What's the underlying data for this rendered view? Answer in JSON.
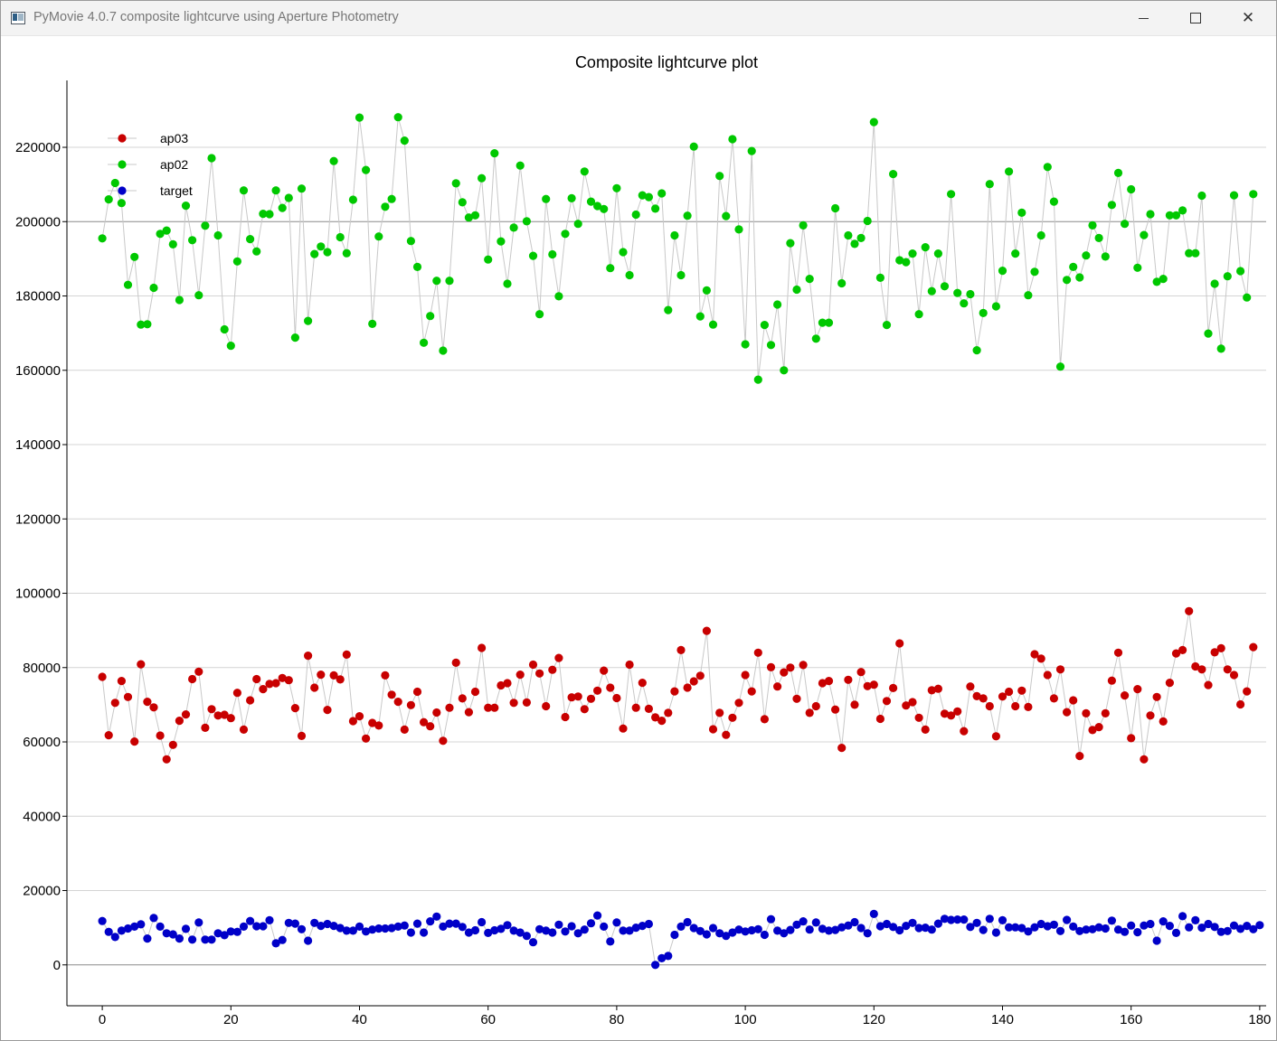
{
  "window": {
    "title": "PyMovie 4.0.7 composite lightcurve using Aperture Photometry",
    "minimize_icon": "minimize-icon",
    "maximize_icon": "maximize-icon",
    "close_icon": "close-icon",
    "close_glyph": "✕"
  },
  "chart_data": {
    "type": "line",
    "title": "Composite lightcurve plot",
    "xlabel": "",
    "ylabel": "",
    "xlim": [
      -5.5,
      181
    ],
    "ylim": [
      -11000,
      238000
    ],
    "x_ticks": [
      0,
      20,
      40,
      60,
      80,
      100,
      120,
      140,
      160,
      180
    ],
    "y_ticks": [
      0,
      20000,
      40000,
      60000,
      80000,
      100000,
      120000,
      140000,
      160000,
      180000,
      200000,
      220000
    ],
    "grid": true,
    "legend_position": "top-left",
    "line_color": "#c8c8c8",
    "series": [
      {
        "name": "target",
        "color": "#0000c8",
        "values": [
          11800,
          8900,
          7500,
          9200,
          9800,
          10300,
          10900,
          7100,
          12600,
          10300,
          8500,
          8200,
          7100,
          9700,
          6800,
          11400,
          6800,
          6800,
          8500,
          8000,
          9000,
          8900,
          10300,
          11800,
          10400,
          10400,
          12000,
          5800,
          6700,
          11300,
          11100,
          9600,
          6500,
          11300,
          10500,
          11000,
          10500,
          9900,
          9200,
          9200,
          10300,
          9000,
          9500,
          9800,
          9800,
          9900,
          10300,
          10600,
          8700,
          11100,
          8700,
          11700,
          13000,
          10300,
          11100,
          11100,
          10200,
          8700,
          9300,
          11500,
          8600,
          9300,
          9700,
          10700,
          9200,
          8700,
          7800,
          6100,
          9600,
          9200,
          8700,
          10800,
          9000,
          10400,
          8500,
          9500,
          11200,
          13300,
          10300,
          6300,
          11400,
          9200,
          9200,
          10000,
          10500,
          11000,
          0,
          1800,
          2400,
          8100,
          10300,
          11500,
          9900,
          9100,
          8200,
          9900,
          8500,
          7800,
          8700,
          9500,
          9000,
          9300,
          9600,
          8100,
          12300,
          9200,
          8500,
          9400,
          10800,
          11700,
          9500,
          11400,
          9700,
          9200,
          9400,
          10100,
          10600,
          11500,
          9900,
          8500,
          13700,
          10400,
          11000,
          10200,
          9300,
          10500,
          11300,
          9900,
          10000,
          9500,
          11100,
          12400,
          12100,
          12200,
          12200,
          10200,
          11300,
          9400,
          12400,
          8700,
          12000,
          10100,
          10100,
          9900,
          9000,
          10100,
          11000,
          10400,
          10800,
          9100,
          12100,
          10300,
          9100,
          9500,
          9600,
          10100,
          9800,
          11900,
          9500,
          8900,
          10600,
          8800,
          10600,
          11000,
          6500,
          11700,
          10500,
          8600,
          13100,
          10100,
          12000,
          10000,
          11000,
          10200,
          8900,
          9100,
          10600,
          9700,
          10500,
          9600,
          10700
        ]
      },
      {
        "name": "ap03",
        "color": "#c80000",
        "values": [
          77500,
          61800,
          70500,
          76400,
          72100,
          60100,
          80900,
          70800,
          69300,
          61700,
          55300,
          59200,
          65700,
          67400,
          76900,
          78900,
          63800,
          68800,
          67100,
          67300,
          66400,
          73200,
          63300,
          71200,
          76900,
          74200,
          75600,
          75800,
          77200,
          76600,
          69100,
          61600,
          83200,
          74600,
          78100,
          68600,
          77900,
          76800,
          83500,
          65600,
          66900,
          60900,
          65100,
          64400,
          77900,
          72700,
          70800,
          63300,
          69900,
          73500,
          65300,
          64200,
          67900,
          60300,
          69200,
          81300,
          71700,
          68000,
          73500,
          85300,
          69200,
          69200,
          75200,
          75800,
          70500,
          78100,
          70600,
          80800,
          78400,
          69600,
          79400,
          82600,
          66700,
          72000,
          72200,
          68800,
          71600,
          73800,
          79200,
          74600,
          71800,
          63600,
          80800,
          69200,
          75900,
          68900,
          66600,
          65700,
          67800,
          73600,
          84700,
          74600,
          76300,
          77800,
          89900,
          63400,
          67800,
          61900,
          66500,
          70500,
          78000,
          73600,
          84000,
          66100,
          80100,
          74900,
          78700,
          80000,
          71600,
          80700,
          67800,
          69600,
          75800,
          76400,
          68700,
          58400,
          76700,
          70000,
          78800,
          75000,
          75400,
          66200,
          71000,
          74500,
          86500,
          69800,
          70700,
          66500,
          63300,
          73900,
          74300,
          67600,
          67100,
          68200,
          62900,
          74900,
          72300,
          71700,
          69600,
          61500,
          72200,
          73500,
          69600,
          73800,
          69400,
          83600,
          82400,
          78000,
          71700,
          79500,
          68000,
          71200,
          56200,
          67700,
          63200,
          64000,
          67700,
          76500,
          84000,
          72500,
          61000,
          74200,
          55300,
          67100,
          72100,
          65500,
          75900,
          83800,
          84700,
          95200,
          80300,
          79500,
          75300,
          84100,
          85200,
          79500,
          78000,
          70100,
          73600,
          85500
        ]
      },
      {
        "name": "ap02",
        "color": "#00c800",
        "values": [
          195500,
          206000,
          210400,
          205000,
          183000,
          190500,
          172300,
          172400,
          182200,
          196700,
          197600,
          193900,
          178900,
          204300,
          195000,
          180200,
          198900,
          217100,
          196300,
          171000,
          166600,
          189300,
          208400,
          195300,
          192000,
          202100,
          202000,
          208400,
          203700,
          206400,
          168800,
          208900,
          173300,
          191300,
          193300,
          191800,
          216300,
          195800,
          191500,
          205900,
          228000,
          213900,
          172500,
          196000,
          204000,
          206100,
          228100,
          221800,
          194800,
          187800,
          167400,
          174600,
          184100,
          165300,
          184100,
          210300,
          205200,
          201100,
          201700,
          211700,
          189800,
          218400,
          194700,
          183300,
          198400,
          215100,
          200100,
          190800,
          175100,
          206100,
          191200,
          179900,
          196700,
          206300,
          199400,
          213500,
          205400,
          204200,
          203400,
          187500,
          209000,
          191800,
          185600,
          201900,
          207100,
          206600,
          203500,
          207600,
          176200,
          196300,
          185600,
          201600,
          220200,
          174500,
          181500,
          172300,
          212300,
          201500,
          222200,
          197900,
          167000,
          219000,
          157500,
          172200,
          166800,
          177700,
          160000,
          194200,
          181700,
          199000,
          184600,
          168500,
          172800,
          172800,
          203600,
          183400,
          196300,
          194000,
          195600,
          200200,
          226800,
          184900,
          172200,
          212800,
          189600,
          189100,
          191400,
          175100,
          193100,
          181300,
          191400,
          182600,
          207400,
          180800,
          178000,
          180500,
          165400,
          175400,
          210100,
          177200,
          186800,
          213500,
          191400,
          202400,
          180200,
          186500,
          196300,
          214700,
          205400,
          161000,
          184300,
          187800,
          185000,
          190900,
          199000,
          195600,
          190600,
          204500,
          213100,
          199400,
          208700,
          187600,
          196400,
          202000,
          183800,
          184600,
          201700,
          201700,
          203000,
          191500,
          191500,
          207000,
          169900,
          183300,
          165800,
          185300,
          207100,
          186700,
          179600,
          207400
        ]
      }
    ]
  }
}
